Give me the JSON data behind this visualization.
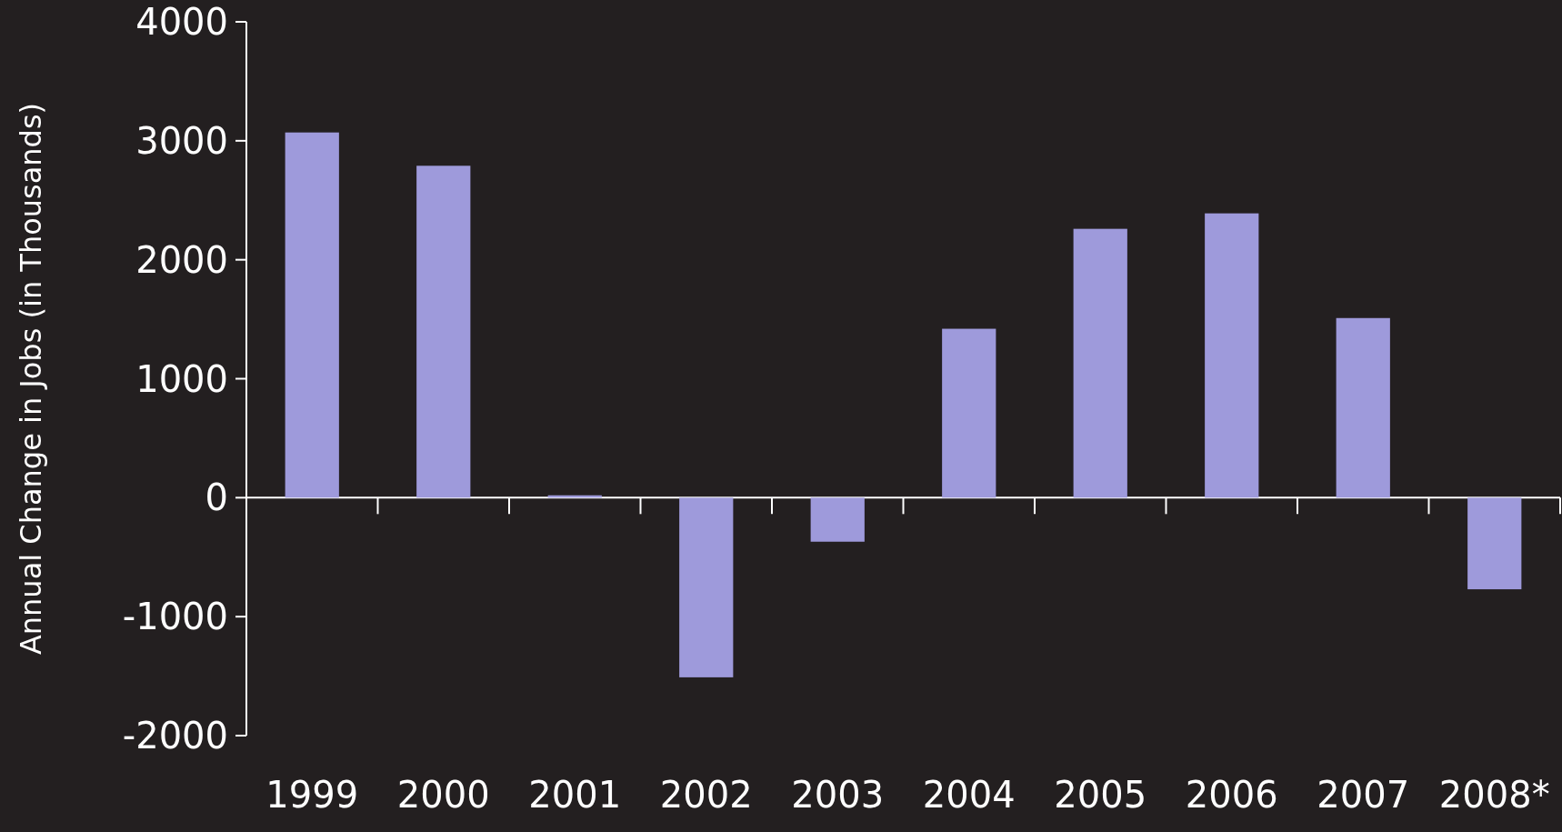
{
  "chart_data": {
    "type": "bar",
    "ylabel": "Annual Change in Jobs (in Thousands)",
    "categories": [
      "1999",
      "2000",
      "2001",
      "2002",
      "2003",
      "2004",
      "2005",
      "2006",
      "2007",
      "2008*"
    ],
    "values": [
      3070,
      2790,
      20,
      -1510,
      -370,
      1420,
      2260,
      2390,
      1510,
      -770
    ],
    "color": "#9e9adb",
    "ylim": [
      -2000,
      4000
    ],
    "yticks": [
      -2000,
      -1000,
      0,
      1000,
      2000,
      3000,
      4000
    ]
  }
}
